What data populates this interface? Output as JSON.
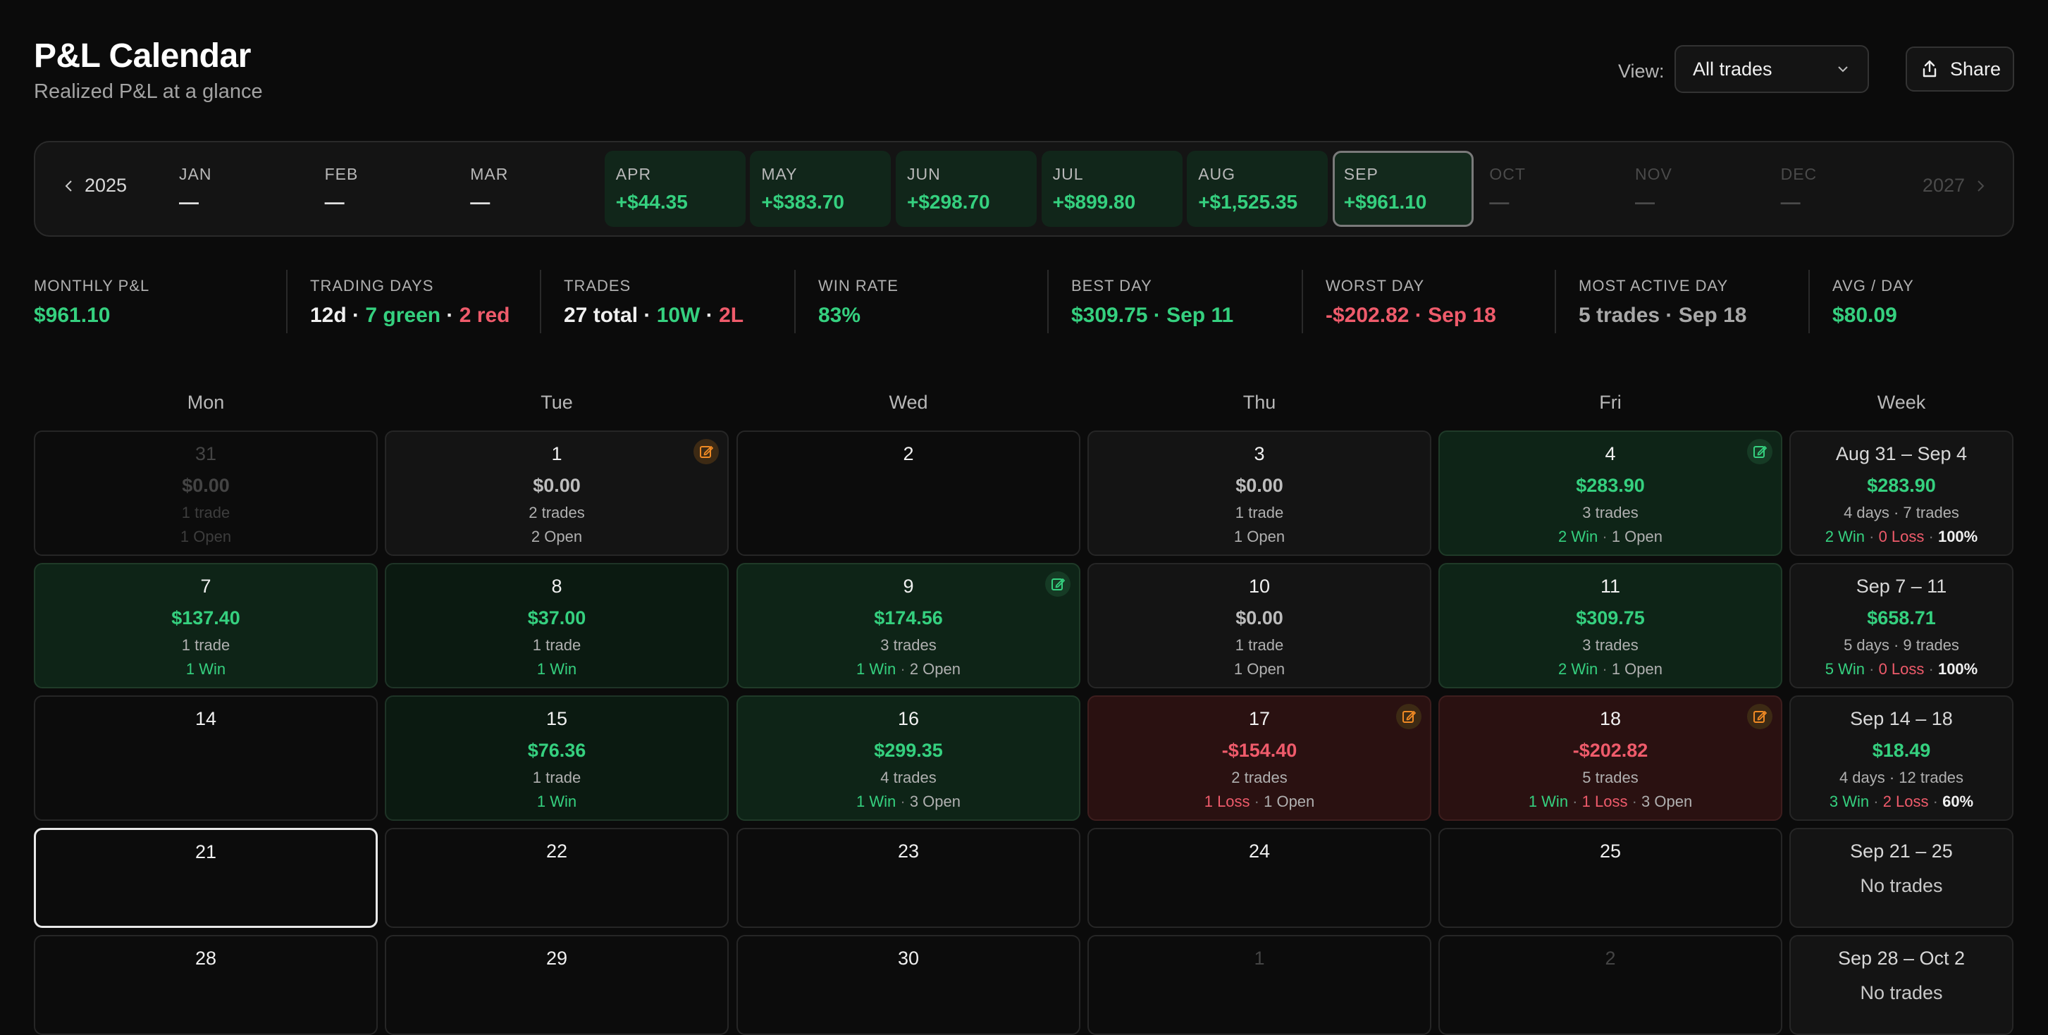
{
  "header": {
    "title": "P&L Calendar",
    "subtitle": "Realized P&L at a glance",
    "view_label": "View:",
    "view_value": "All trades",
    "share_label": "Share"
  },
  "month_bar": {
    "prev_year": "2025",
    "next_year": "2027",
    "months": [
      {
        "name": "JAN",
        "value": "—",
        "state": "empty"
      },
      {
        "name": "FEB",
        "value": "—",
        "state": "empty"
      },
      {
        "name": "MAR",
        "value": "—",
        "state": "empty"
      },
      {
        "name": "APR",
        "value": "+$44.35",
        "state": "has"
      },
      {
        "name": "MAY",
        "value": "+$383.70",
        "state": "has"
      },
      {
        "name": "JUN",
        "value": "+$298.70",
        "state": "has"
      },
      {
        "name": "JUL",
        "value": "+$899.80",
        "state": "has"
      },
      {
        "name": "AUG",
        "value": "+$1,525.35",
        "state": "has"
      },
      {
        "name": "SEP",
        "value": "+$961.10",
        "state": "active"
      },
      {
        "name": "OCT",
        "value": "—",
        "state": "future"
      },
      {
        "name": "NOV",
        "value": "—",
        "state": "future"
      },
      {
        "name": "DEC",
        "value": "—",
        "state": "future"
      }
    ]
  },
  "stats": {
    "monthly_pnl": {
      "label": "MONTHLY P&L",
      "value": "$961.10"
    },
    "trading_days": {
      "label": "TRADING DAYS",
      "days": "12d",
      "sep1": " · ",
      "green": "7 green",
      "sep2": " · ",
      "red": "2 red"
    },
    "trades": {
      "label": "TRADES",
      "total": "27 total",
      "sep1": " · ",
      "wins": "10W",
      "sep2": " · ",
      "losses": "2L"
    },
    "win_rate": {
      "label": "WIN RATE",
      "value": "83%"
    },
    "best_day": {
      "label": "BEST DAY",
      "value": "$309.75 · Sep 11"
    },
    "worst_day": {
      "label": "WORST DAY",
      "value": "-$202.82 · Sep 18"
    },
    "most_active_day": {
      "label": "MOST ACTIVE DAY",
      "value": "5 trades · Sep 18"
    },
    "avg_day": {
      "label": "AVG / DAY",
      "value": "$80.09"
    }
  },
  "weekdays": [
    "Mon",
    "Tue",
    "Wed",
    "Thu",
    "Fri",
    "Week"
  ],
  "weeks": [
    {
      "days": [
        {
          "num": "31",
          "pnl": "$0.00",
          "trades": "1 trade",
          "status": [
            {
              "t": "1 Open",
              "c": ""
            }
          ],
          "style": "dim",
          "note": ""
        },
        {
          "num": "1",
          "pnl": "$0.00",
          "trades": "2 trades",
          "status": [
            {
              "t": "2 Open",
              "c": ""
            }
          ],
          "style": "neutral",
          "note": "orange"
        },
        {
          "num": "2",
          "pnl": "",
          "trades": "",
          "status": [],
          "style": "empty",
          "note": ""
        },
        {
          "num": "3",
          "pnl": "$0.00",
          "trades": "1 trade",
          "status": [
            {
              "t": "1 Open",
              "c": ""
            }
          ],
          "style": "neutral",
          "note": ""
        },
        {
          "num": "4",
          "pnl": "$283.90",
          "trades": "3 trades",
          "status": [
            {
              "t": "2 Win",
              "c": "g"
            },
            {
              "t": "1 Open",
              "c": ""
            }
          ],
          "style": "green",
          "note": "green"
        }
      ],
      "summary": {
        "range": "Aug 31 – Sep 4",
        "pnl": "$283.90",
        "meta": "4 days · 7 trades",
        "win": "2 Win",
        "loss": "0 Loss",
        "rate": "100%",
        "none": ""
      }
    },
    {
      "days": [
        {
          "num": "7",
          "pnl": "$137.40",
          "trades": "1 trade",
          "status": [
            {
              "t": "1 Win",
              "c": "g"
            }
          ],
          "style": "green",
          "note": ""
        },
        {
          "num": "8",
          "pnl": "$37.00",
          "trades": "1 trade",
          "status": [
            {
              "t": "1 Win",
              "c": "g"
            }
          ],
          "style": "green2",
          "note": ""
        },
        {
          "num": "9",
          "pnl": "$174.56",
          "trades": "3 trades",
          "status": [
            {
              "t": "1 Win",
              "c": "g"
            },
            {
              "t": "2 Open",
              "c": ""
            }
          ],
          "style": "green",
          "note": "green"
        },
        {
          "num": "10",
          "pnl": "$0.00",
          "trades": "1 trade",
          "status": [
            {
              "t": "1 Open",
              "c": ""
            }
          ],
          "style": "neutral",
          "note": ""
        },
        {
          "num": "11",
          "pnl": "$309.75",
          "trades": "3 trades",
          "status": [
            {
              "t": "2 Win",
              "c": "g"
            },
            {
              "t": "1 Open",
              "c": ""
            }
          ],
          "style": "green",
          "note": ""
        }
      ],
      "summary": {
        "range": "Sep 7 – 11",
        "pnl": "$658.71",
        "meta": "5 days · 9 trades",
        "win": "5 Win",
        "loss": "0 Loss",
        "rate": "100%",
        "none": ""
      }
    },
    {
      "days": [
        {
          "num": "14",
          "pnl": "",
          "trades": "",
          "status": [],
          "style": "empty",
          "note": ""
        },
        {
          "num": "15",
          "pnl": "$76.36",
          "trades": "1 trade",
          "status": [
            {
              "t": "1 Win",
              "c": "g"
            }
          ],
          "style": "green2",
          "note": ""
        },
        {
          "num": "16",
          "pnl": "$299.35",
          "trades": "4 trades",
          "status": [
            {
              "t": "1 Win",
              "c": "g"
            },
            {
              "t": "3 Open",
              "c": ""
            }
          ],
          "style": "green",
          "note": ""
        },
        {
          "num": "17",
          "pnl": "-$154.40",
          "trades": "2 trades",
          "status": [
            {
              "t": "1 Loss",
              "c": "r"
            },
            {
              "t": "1 Open",
              "c": ""
            }
          ],
          "style": "red",
          "note": "orange"
        },
        {
          "num": "18",
          "pnl": "-$202.82",
          "trades": "5 trades",
          "status": [
            {
              "t": "1 Win",
              "c": "g"
            },
            {
              "t": "1 Loss",
              "c": "r"
            },
            {
              "t": "3 Open",
              "c": ""
            }
          ],
          "style": "red",
          "note": "orange"
        }
      ],
      "summary": {
        "range": "Sep 14 – 18",
        "pnl": "$18.49",
        "meta": "4 days · 12 trades",
        "win": "3 Win",
        "loss": "2 Loss",
        "rate": "60%",
        "none": ""
      }
    },
    {
      "days": [
        {
          "num": "21",
          "pnl": "",
          "trades": "",
          "status": [],
          "style": "today",
          "note": ""
        },
        {
          "num": "22",
          "pnl": "",
          "trades": "",
          "status": [],
          "style": "empty",
          "note": ""
        },
        {
          "num": "23",
          "pnl": "",
          "trades": "",
          "status": [],
          "style": "empty",
          "note": ""
        },
        {
          "num": "24",
          "pnl": "",
          "trades": "",
          "status": [],
          "style": "empty",
          "note": ""
        },
        {
          "num": "25",
          "pnl": "",
          "trades": "",
          "status": [],
          "style": "empty",
          "note": ""
        }
      ],
      "summary": {
        "range": "Sep 21 – 25",
        "pnl": "",
        "meta": "",
        "win": "",
        "loss": "",
        "rate": "",
        "none": "No trades"
      }
    },
    {
      "days": [
        {
          "num": "28",
          "pnl": "",
          "trades": "",
          "status": [],
          "style": "empty",
          "note": ""
        },
        {
          "num": "29",
          "pnl": "",
          "trades": "",
          "status": [],
          "style": "empty",
          "note": ""
        },
        {
          "num": "30",
          "pnl": "",
          "trades": "",
          "status": [],
          "style": "empty",
          "note": ""
        },
        {
          "num": "1",
          "pnl": "",
          "trades": "",
          "status": [],
          "style": "dim",
          "note": ""
        },
        {
          "num": "2",
          "pnl": "",
          "trades": "",
          "status": [],
          "style": "dim",
          "note": ""
        }
      ],
      "summary": {
        "range": "Sep 28 – Oct 2",
        "pnl": "",
        "meta": "",
        "win": "",
        "loss": "",
        "rate": "",
        "none": "No trades"
      }
    }
  ],
  "colors": {
    "green": "#35d07f",
    "red": "#ef5b6b",
    "orange": "#f08a24"
  }
}
